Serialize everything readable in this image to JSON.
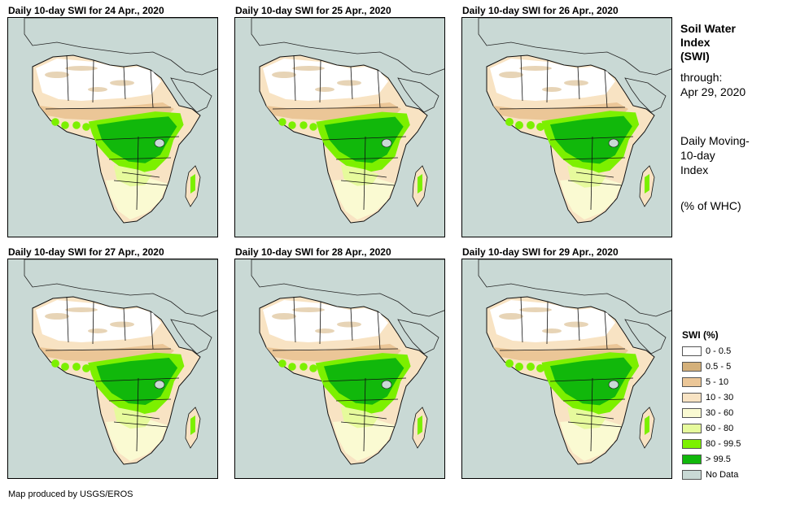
{
  "panels": [
    {
      "title": "Daily 10-day  SWI for 24 Apr., 2020",
      "wetness": 0.9
    },
    {
      "title": "Daily 10-day  SWI for 25 Apr., 2020",
      "wetness": 0.85
    },
    {
      "title": "Daily 10-day  SWI for 26 Apr., 2020",
      "wetness": 1.0
    },
    {
      "title": "Daily 10-day  SWI for 27 Apr., 2020",
      "wetness": 0.95
    },
    {
      "title": "Daily 10-day  SWI for 28 Apr., 2020",
      "wetness": 0.9
    },
    {
      "title": "Daily 10-day  SWI for 29 Apr., 2020",
      "wetness": 1.0
    }
  ],
  "side": {
    "title_line1": "Soil Water",
    "title_line2": "Index",
    "title_line3": "(SWI)",
    "through_label": "through:",
    "through_date": "Apr 29, 2020",
    "desc_line1": "Daily Moving-",
    "desc_line2": "10-day",
    "desc_line3": "Index",
    "unit": "(% of WHC)"
  },
  "legend": {
    "title": "SWI (%)",
    "items": [
      {
        "label": "0 - 0.5",
        "color": "#ffffff"
      },
      {
        "label": "0.5 - 5",
        "color": "#d4b07a"
      },
      {
        "label": "5 - 10",
        "color": "#ebc697"
      },
      {
        "label": "10 - 30",
        "color": "#f8e3c3"
      },
      {
        "label": "30 - 60",
        "color": "#fafad2"
      },
      {
        "label": "60 - 80",
        "color": "#e6fa9c"
      },
      {
        "label": "80 - 99.5",
        "color": "#7cf000"
      },
      {
        "label": "> 99.5",
        "color": "#11b80b"
      },
      {
        "label": "No Data",
        "color": "#c9d9d5"
      }
    ]
  },
  "credit": "Map produced by USGS/EROS"
}
